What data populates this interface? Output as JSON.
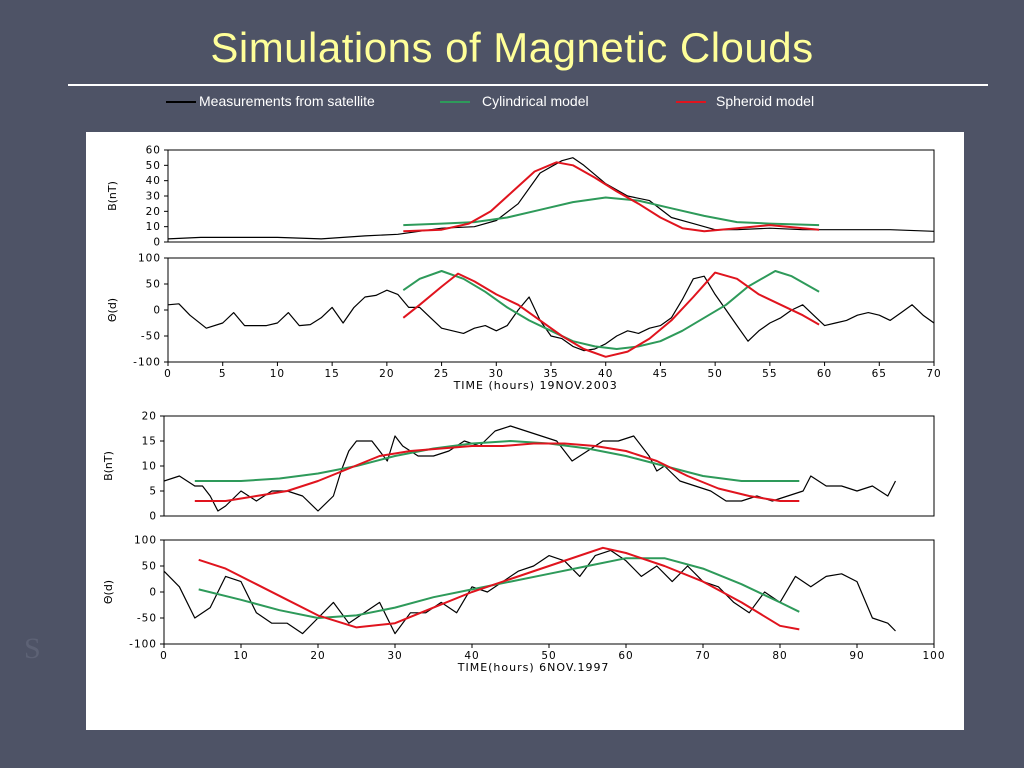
{
  "slide": {
    "title": "Simulations of Magnetic Clouds"
  },
  "legend": [
    {
      "label": "Measurements from satellite",
      "color": "#000000"
    },
    {
      "label": "Cylindrical model",
      "color": "#2e9a5a"
    },
    {
      "label": "Spheroid model",
      "color": "#e0141e"
    }
  ],
  "colors": {
    "background": "#4e5366",
    "title": "#ffff99",
    "measurement": "#000000",
    "cylindrical": "#2e9a5a",
    "spheroid": "#e0141e"
  },
  "chart_data": [
    {
      "type": "line",
      "ylabel": "B(nT)",
      "xlim": [
        0,
        70
      ],
      "ylim": [
        0,
        60
      ],
      "yticks": [
        0,
        10,
        20,
        30,
        40,
        50,
        60
      ],
      "series": [
        {
          "name": "Measurements from satellite",
          "color": "#000000",
          "x": [
            0,
            3,
            6,
            10,
            14,
            16,
            18,
            21,
            25,
            28,
            30,
            32,
            34,
            36,
            37,
            38,
            40,
            42,
            44,
            46,
            48,
            50,
            52,
            55,
            58,
            62,
            66,
            70
          ],
          "y": [
            2,
            3,
            3,
            3,
            2,
            3,
            4,
            5,
            9,
            10,
            14,
            25,
            45,
            53,
            55,
            50,
            38,
            30,
            27,
            16,
            12,
            8,
            8,
            9,
            8,
            8,
            8,
            7
          ]
        },
        {
          "name": "Cylindrical model",
          "color": "#2e9a5a",
          "x": [
            21.5,
            25,
            28,
            31,
            34,
            37,
            40,
            43,
            46,
            49,
            52,
            55,
            59.5
          ],
          "y": [
            11,
            12,
            13,
            16,
            21,
            26,
            29,
            27,
            22,
            17,
            13,
            12,
            11
          ]
        },
        {
          "name": "Spheroid model",
          "color": "#e0141e",
          "x": [
            21.5,
            25,
            27.5,
            29.5,
            31.5,
            33.5,
            35.5,
            37,
            39,
            41,
            43,
            45,
            47,
            49,
            52,
            55,
            59.5
          ],
          "y": [
            7,
            8,
            12,
            20,
            33,
            46,
            52,
            50,
            42,
            33,
            25,
            16,
            9,
            7,
            9,
            11,
            8
          ]
        }
      ]
    },
    {
      "type": "line",
      "ylabel": "Θ(d)",
      "xlabel": "TIME (hours) 19NOV.2003",
      "xlim": [
        0,
        70
      ],
      "ylim": [
        -100,
        100
      ],
      "xticks": [
        0,
        5,
        10,
        15,
        20,
        25,
        30,
        35,
        40,
        45,
        50,
        55,
        60,
        65,
        70
      ],
      "yticks": [
        -100,
        -50,
        0,
        50,
        100
      ],
      "series": [
        {
          "name": "Measurements from satellite",
          "color": "#000000",
          "x": [
            0,
            1,
            2,
            3.5,
            5,
            6,
            7,
            8,
            9,
            10,
            11,
            12,
            13,
            14,
            15,
            16,
            17,
            18,
            19,
            20,
            21,
            22,
            23,
            24,
            25,
            26,
            27,
            28,
            29,
            30,
            31,
            32,
            33,
            34,
            35,
            36,
            37,
            38,
            39,
            40,
            41,
            42,
            43,
            44,
            45,
            46,
            47,
            48,
            49,
            50,
            51,
            52,
            53,
            54,
            55,
            56,
            57,
            58,
            59,
            60,
            61,
            62,
            63,
            64,
            65,
            66,
            67,
            68,
            69,
            70
          ],
          "y": [
            10,
            12,
            -10,
            -35,
            -25,
            -5,
            -30,
            -30,
            -30,
            -25,
            -5,
            -30,
            -28,
            -15,
            5,
            -25,
            5,
            25,
            28,
            38,
            30,
            5,
            5,
            -15,
            -35,
            -40,
            -45,
            -35,
            -30,
            -40,
            -30,
            0,
            25,
            -20,
            -50,
            -55,
            -70,
            -78,
            -75,
            -65,
            -50,
            -40,
            -45,
            -35,
            -30,
            -15,
            20,
            60,
            65,
            30,
            0,
            -30,
            -60,
            -40,
            -25,
            -15,
            0,
            10,
            -10,
            -30,
            -25,
            -20,
            -10,
            -5,
            -10,
            -20,
            -5,
            10,
            -10,
            -25
          ]
        },
        {
          "name": "Cylindrical model",
          "color": "#2e9a5a",
          "x": [
            21.5,
            23,
            25,
            27,
            29,
            31,
            33,
            35,
            37,
            39,
            41,
            43,
            45,
            47,
            49,
            51,
            53,
            55.5,
            57,
            59.5
          ],
          "y": [
            38,
            60,
            75,
            60,
            35,
            5,
            -20,
            -40,
            -60,
            -70,
            -75,
            -70,
            -60,
            -40,
            -15,
            10,
            45,
            75,
            65,
            35
          ]
        },
        {
          "name": "Spheroid model",
          "color": "#e0141e",
          "x": [
            21.5,
            23,
            25,
            26.5,
            28,
            30,
            32,
            34,
            36,
            38,
            40,
            42,
            44,
            46,
            48,
            50,
            52,
            54,
            56,
            58,
            59.5
          ],
          "y": [
            -15,
            10,
            45,
            70,
            55,
            30,
            10,
            -20,
            -50,
            -75,
            -90,
            -80,
            -55,
            -20,
            25,
            72,
            60,
            30,
            10,
            -10,
            -28
          ]
        }
      ]
    },
    {
      "type": "line",
      "ylabel": "B(nT)",
      "xlim": [
        0,
        100
      ],
      "ylim": [
        0,
        20
      ],
      "yticks": [
        0,
        5,
        10,
        15,
        20
      ],
      "series": [
        {
          "name": "Measurements from satellite",
          "color": "#000000",
          "x": [
            0,
            2,
            4,
            5,
            6,
            7,
            8,
            10,
            12,
            14,
            16,
            18,
            20,
            22,
            23,
            24,
            25,
            27,
            29,
            30,
            31,
            33,
            35,
            37,
            39,
            41,
            43,
            45,
            47,
            49,
            51,
            53,
            55,
            57,
            59,
            61,
            63,
            64,
            65,
            67,
            69,
            71,
            73,
            75,
            77,
            79,
            81,
            83,
            84,
            85,
            86,
            88,
            90,
            92,
            94,
            95
          ],
          "y": [
            7,
            8,
            6,
            6,
            4,
            1,
            2,
            5,
            3,
            5,
            5,
            4,
            1,
            4,
            9,
            13,
            15,
            15,
            11,
            16,
            14,
            12,
            12,
            13,
            15,
            14,
            17,
            18,
            17,
            16,
            15,
            11,
            13,
            15,
            15,
            16,
            12,
            9,
            10,
            7,
            6,
            5,
            3,
            3,
            4,
            3,
            4,
            5,
            8,
            7,
            6,
            6,
            5,
            6,
            4,
            7
          ]
        },
        {
          "name": "Cylindrical model",
          "color": "#2e9a5a",
          "x": [
            4,
            10,
            15,
            20,
            25,
            30,
            35,
            40,
            45,
            50,
            55,
            60,
            65,
            70,
            75,
            80,
            82.5
          ],
          "y": [
            7,
            7,
            7.5,
            8.5,
            10,
            12,
            13.5,
            14.5,
            15,
            14.5,
            13.5,
            12,
            10,
            8,
            7,
            7,
            7
          ]
        },
        {
          "name": "Spheroid model",
          "color": "#e0141e",
          "x": [
            4,
            8,
            12,
            16,
            20,
            24,
            28,
            32,
            36,
            40,
            44,
            48,
            52,
            56,
            60,
            64,
            68,
            72,
            76,
            80,
            82.5
          ],
          "y": [
            3,
            3,
            4,
            5,
            7,
            9.5,
            12,
            13,
            13.5,
            14,
            14,
            14.5,
            14.5,
            14,
            13,
            11,
            8,
            5.5,
            4,
            3,
            3
          ]
        }
      ]
    },
    {
      "type": "line",
      "ylabel": "Θ(d)",
      "xlabel": "TIME(hours) 6NOV.1997",
      "xlim": [
        0,
        100
      ],
      "ylim": [
        -100,
        100
      ],
      "xticks": [
        0,
        10,
        20,
        30,
        40,
        50,
        60,
        70,
        80,
        90,
        100
      ],
      "yticks": [
        -100,
        -50,
        0,
        50,
        100
      ],
      "series": [
        {
          "name": "Measurements from satellite",
          "color": "#000000",
          "x": [
            0,
            2,
            4,
            6,
            8,
            10,
            12,
            14,
            16,
            18,
            20,
            22,
            24,
            26,
            28,
            30,
            32,
            34,
            36,
            38,
            40,
            42,
            44,
            46,
            48,
            50,
            52,
            54,
            56,
            58,
            60,
            62,
            64,
            66,
            68,
            70,
            72,
            74,
            76,
            78,
            80,
            82,
            84,
            86,
            88,
            90,
            92,
            94,
            95
          ],
          "y": [
            40,
            10,
            -50,
            -30,
            30,
            20,
            -40,
            -60,
            -60,
            -80,
            -50,
            -20,
            -60,
            -40,
            -20,
            -80,
            -40,
            -40,
            -20,
            -40,
            10,
            0,
            20,
            40,
            50,
            70,
            60,
            30,
            70,
            80,
            60,
            30,
            50,
            20,
            50,
            20,
            10,
            -20,
            -40,
            0,
            -20,
            30,
            10,
            30,
            35,
            20,
            -50,
            -60,
            -75
          ]
        },
        {
          "name": "Cylindrical model",
          "color": "#2e9a5a",
          "x": [
            4.5,
            10,
            15,
            20,
            25,
            30,
            35,
            40,
            45,
            50,
            55,
            60,
            65,
            70,
            75,
            80,
            82.5
          ],
          "y": [
            5,
            -15,
            -35,
            -50,
            -45,
            -30,
            -10,
            5,
            20,
            35,
            50,
            65,
            65,
            45,
            15,
            -20,
            -38
          ]
        },
        {
          "name": "Spheroid model",
          "color": "#e0141e",
          "x": [
            4.5,
            8,
            12,
            16,
            20,
            25,
            30,
            35,
            40,
            45,
            50,
            55,
            57,
            60,
            65,
            70,
            75,
            80,
            82.5
          ],
          "y": [
            62,
            45,
            15,
            -15,
            -45,
            -68,
            -60,
            -30,
            0,
            25,
            50,
            75,
            85,
            75,
            50,
            20,
            -20,
            -65,
            -72
          ]
        }
      ]
    }
  ]
}
